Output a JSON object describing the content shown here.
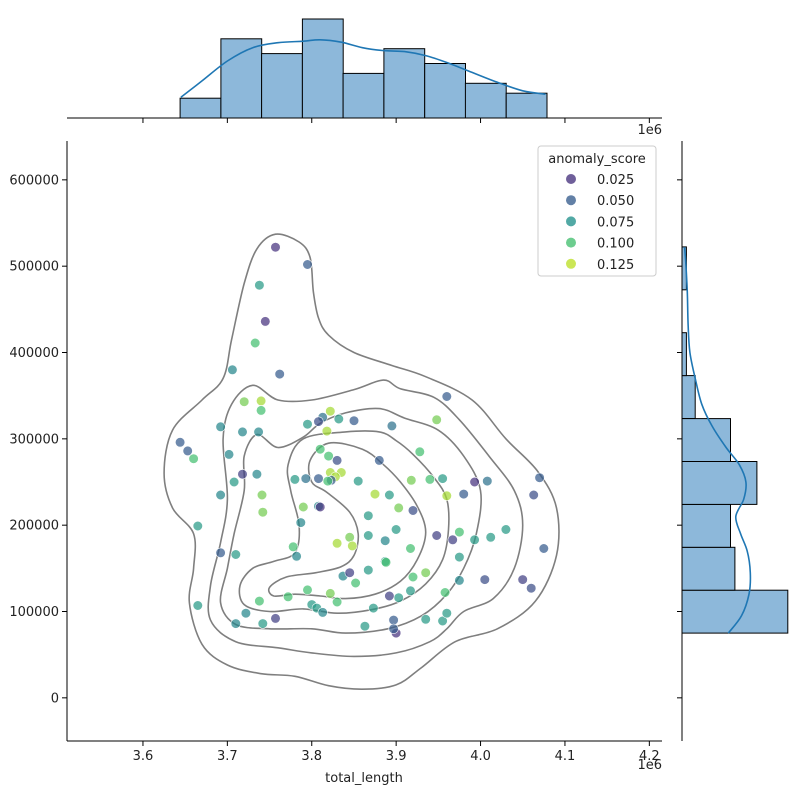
{
  "chart_data": {
    "type": "scatter",
    "title": "",
    "xlabel": "total_length",
    "ylabel": "",
    "x_offset_label": "1e6",
    "top_offset_label": "1e6",
    "xlim": [
      3.51,
      4.215
    ],
    "ylim": [
      -50000,
      645000
    ],
    "x_ticks": [
      3.6,
      3.7,
      3.8,
      3.9,
      4.0,
      4.1,
      4.2
    ],
    "x_tick_labels": [
      "3.6",
      "3.7",
      "3.8",
      "3.9",
      "4.0",
      "4.1",
      "4.2"
    ],
    "y_ticks": [
      0,
      100000,
      200000,
      300000,
      400000,
      500000,
      600000
    ],
    "y_tick_labels": [
      "0",
      "100000",
      "200000",
      "300000",
      "400000",
      "500000",
      "600000"
    ],
    "grid": false,
    "legend": {
      "title": "anomaly_score",
      "position": "top-right",
      "entries": [
        {
          "label": "0.025",
          "color": "#46327e"
        },
        {
          "label": "0.050",
          "color": "#365c8d"
        },
        {
          "label": "0.075",
          "color": "#21918c"
        },
        {
          "label": "0.100",
          "color": "#44bf70"
        },
        {
          "label": "0.125",
          "color": "#bddf26"
        }
      ]
    },
    "points": [
      [
        3.757,
        522000,
        0.02
      ],
      [
        3.795,
        502000,
        0.05
      ],
      [
        3.738,
        478000,
        0.08
      ],
      [
        3.745,
        436000,
        0.02
      ],
      [
        3.733,
        411000,
        0.1
      ],
      [
        3.762,
        375000,
        0.05
      ],
      [
        3.706,
        380000,
        0.07
      ],
      [
        3.72,
        343000,
        0.11
      ],
      [
        3.74,
        344000,
        0.12
      ],
      [
        3.74,
        333000,
        0.1
      ],
      [
        3.718,
        308000,
        0.07
      ],
      [
        3.737,
        308000,
        0.07
      ],
      [
        3.692,
        314000,
        0.07
      ],
      [
        3.644,
        296000,
        0.05
      ],
      [
        3.653,
        286000,
        0.05
      ],
      [
        3.66,
        277000,
        0.1
      ],
      [
        3.702,
        282000,
        0.07
      ],
      [
        3.708,
        250000,
        0.08
      ],
      [
        3.718,
        259000,
        0.03
      ],
      [
        3.735,
        259000,
        0.07
      ],
      [
        3.741,
        235000,
        0.11
      ],
      [
        3.742,
        215000,
        0.11
      ],
      [
        3.692,
        235000,
        0.07
      ],
      [
        3.665,
        199000,
        0.08
      ],
      [
        3.692,
        168000,
        0.05
      ],
      [
        3.71,
        166000,
        0.08
      ],
      [
        3.665,
        107000,
        0.08
      ],
      [
        3.71,
        86000,
        0.07
      ],
      [
        3.722,
        98000,
        0.07
      ],
      [
        3.738,
        112000,
        0.1
      ],
      [
        3.742,
        86000,
        0.08
      ],
      [
        3.757,
        92000,
        0.03
      ],
      [
        3.772,
        117000,
        0.1
      ],
      [
        3.782,
        164000,
        0.07
      ],
      [
        3.787,
        203000,
        0.07
      ],
      [
        3.778,
        175000,
        0.1
      ],
      [
        3.795,
        125000,
        0.1
      ],
      [
        3.8,
        108000,
        0.08
      ],
      [
        3.806,
        104000,
        0.08
      ],
      [
        3.813,
        99000,
        0.07
      ],
      [
        3.822,
        121000,
        0.11
      ],
      [
        3.83,
        111000,
        0.1
      ],
      [
        3.837,
        141000,
        0.07
      ],
      [
        3.845,
        145000,
        0.03
      ],
      [
        3.852,
        133000,
        0.1
      ],
      [
        3.863,
        83000,
        0.08
      ],
      [
        3.873,
        104000,
        0.08
      ],
      [
        3.867,
        148000,
        0.08
      ],
      [
        3.887,
        158000,
        0.08
      ],
      [
        3.897,
        90000,
        0.05
      ],
      [
        3.9,
        75000,
        0.02
      ],
      [
        3.897,
        80000,
        0.05
      ],
      [
        3.903,
        116000,
        0.08
      ],
      [
        3.892,
        118000,
        0.03
      ],
      [
        3.917,
        124000,
        0.08
      ],
      [
        3.92,
        140000,
        0.1
      ],
      [
        3.917,
        173000,
        0.1
      ],
      [
        3.935,
        145000,
        0.11
      ],
      [
        3.935,
        91000,
        0.08
      ],
      [
        3.955,
        89000,
        0.08
      ],
      [
        3.96,
        98000,
        0.08
      ],
      [
        3.958,
        122000,
        0.1
      ],
      [
        3.975,
        136000,
        0.07
      ],
      [
        3.975,
        163000,
        0.08
      ],
      [
        3.975,
        192000,
        0.1
      ],
      [
        3.993,
        183000,
        0.08
      ],
      [
        4.005,
        137000,
        0.04
      ],
      [
        4.012,
        186000,
        0.08
      ],
      [
        4.03,
        195000,
        0.08
      ],
      [
        4.05,
        137000,
        0.03
      ],
      [
        4.063,
        235000,
        0.04
      ],
      [
        4.07,
        255000,
        0.05
      ],
      [
        4.075,
        173000,
        0.05
      ],
      [
        4.06,
        127000,
        0.04
      ],
      [
        3.993,
        250000,
        0.02
      ],
      [
        4.008,
        251000,
        0.06
      ],
      [
        3.98,
        236000,
        0.05
      ],
      [
        3.96,
        234000,
        0.12
      ],
      [
        3.955,
        254000,
        0.08
      ],
      [
        3.96,
        349000,
        0.05
      ],
      [
        3.948,
        322000,
        0.11
      ],
      [
        3.928,
        285000,
        0.1
      ],
      [
        3.94,
        253000,
        0.1
      ],
      [
        3.918,
        252000,
        0.11
      ],
      [
        3.92,
        217000,
        0.04
      ],
      [
        3.948,
        188000,
        0.03
      ],
      [
        3.967,
        183000,
        0.03
      ],
      [
        3.9,
        195000,
        0.08
      ],
      [
        3.903,
        220000,
        0.11
      ],
      [
        3.892,
        235000,
        0.08
      ],
      [
        3.875,
        236000,
        0.12
      ],
      [
        3.88,
        275000,
        0.05
      ],
      [
        3.895,
        315000,
        0.06
      ],
      [
        3.85,
        321000,
        0.05
      ],
      [
        3.832,
        323000,
        0.08
      ],
      [
        3.822,
        332000,
        0.12
      ],
      [
        3.813,
        325000,
        0.06
      ],
      [
        3.808,
        320000,
        0.04
      ],
      [
        3.795,
        317000,
        0.08
      ],
      [
        3.818,
        309000,
        0.12
      ],
      [
        3.81,
        288000,
        0.1
      ],
      [
        3.82,
        280000,
        0.1
      ],
      [
        3.83,
        275000,
        0.04
      ],
      [
        3.822,
        261000,
        0.12
      ],
      [
        3.835,
        261000,
        0.12
      ],
      [
        3.828,
        256000,
        0.12
      ],
      [
        3.823,
        252000,
        0.05
      ],
      [
        3.819,
        251000,
        0.1
      ],
      [
        3.808,
        254000,
        0.05
      ],
      [
        3.793,
        254000,
        0.06
      ],
      [
        3.78,
        253000,
        0.08
      ],
      [
        3.808,
        222000,
        0.07
      ],
      [
        3.81,
        221000,
        0.02
      ],
      [
        3.855,
        251000,
        0.08
      ],
      [
        3.867,
        211000,
        0.08
      ],
      [
        3.867,
        188000,
        0.08
      ],
      [
        3.845,
        186000,
        0.11
      ],
      [
        3.848,
        176000,
        0.12
      ],
      [
        3.83,
        179000,
        0.12
      ],
      [
        3.888,
        157000,
        0.1
      ],
      [
        3.887,
        182000,
        0.07
      ],
      [
        3.79,
        221000,
        0.11
      ]
    ],
    "contours": [
      [
        [
          3.757,
          537000
        ],
        [
          3.785,
          528000
        ],
        [
          3.798,
          510000
        ],
        [
          3.802,
          470000
        ],
        [
          3.808,
          440000
        ],
        [
          3.82,
          420000
        ],
        [
          3.85,
          400000
        ],
        [
          3.895,
          385000
        ],
        [
          3.935,
          372000
        ],
        [
          3.99,
          345000
        ],
        [
          4.03,
          300000
        ],
        [
          4.068,
          262000
        ],
        [
          4.09,
          220000
        ],
        [
          4.09,
          165000
        ],
        [
          4.065,
          112000
        ],
        [
          4.02,
          80000
        ],
        [
          3.97,
          65000
        ],
        [
          3.93,
          35000
        ],
        [
          3.9,
          15000
        ],
        [
          3.86,
          10000
        ],
        [
          3.82,
          14000
        ],
        [
          3.78,
          25000
        ],
        [
          3.74,
          28000
        ],
        [
          3.7,
          38000
        ],
        [
          3.67,
          62000
        ],
        [
          3.655,
          110000
        ],
        [
          3.66,
          150000
        ],
        [
          3.66,
          190000
        ],
        [
          3.635,
          220000
        ],
        [
          3.625,
          260000
        ],
        [
          3.635,
          310000
        ],
        [
          3.67,
          345000
        ],
        [
          3.695,
          370000
        ],
        [
          3.705,
          415000
        ],
        [
          3.72,
          480000
        ],
        [
          3.735,
          520000
        ]
      ],
      [
        [
          3.73,
          362000
        ],
        [
          3.76,
          345000
        ],
        [
          3.8,
          345000
        ],
        [
          3.85,
          357000
        ],
        [
          3.885,
          368000
        ],
        [
          3.905,
          358000
        ],
        [
          3.945,
          348000
        ],
        [
          3.975,
          322000
        ],
        [
          4.01,
          280000
        ],
        [
          4.04,
          240000
        ],
        [
          4.05,
          200000
        ],
        [
          4.04,
          150000
        ],
        [
          4.015,
          115000
        ],
        [
          3.98,
          100000
        ],
        [
          3.96,
          80000
        ],
        [
          3.94,
          65000
        ],
        [
          3.9,
          52000
        ],
        [
          3.85,
          48000
        ],
        [
          3.8,
          52000
        ],
        [
          3.76,
          58000
        ],
        [
          3.71,
          65000
        ],
        [
          3.68,
          90000
        ],
        [
          3.68,
          130000
        ],
        [
          3.692,
          180000
        ],
        [
          3.7,
          230000
        ],
        [
          3.695,
          300000
        ],
        [
          3.705,
          340000
        ]
      ],
      [
        [
          3.735,
          305000
        ],
        [
          3.76,
          290000
        ],
        [
          3.79,
          302000
        ],
        [
          3.81,
          318000
        ],
        [
          3.84,
          330000
        ],
        [
          3.88,
          335000
        ],
        [
          3.91,
          324000
        ],
        [
          3.95,
          310000
        ],
        [
          3.98,
          280000
        ],
        [
          4.0,
          240000
        ],
        [
          3.995,
          190000
        ],
        [
          3.98,
          150000
        ],
        [
          3.96,
          120000
        ],
        [
          3.93,
          95000
        ],
        [
          3.89,
          80000
        ],
        [
          3.84,
          75000
        ],
        [
          3.8,
          80000
        ],
        [
          3.75,
          80000
        ],
        [
          3.71,
          85000
        ],
        [
          3.692,
          110000
        ],
        [
          3.7,
          150000
        ],
        [
          3.708,
          190000
        ],
        [
          3.72,
          240000
        ],
        [
          3.72,
          280000
        ]
      ],
      [
        [
          3.79,
          300000
        ],
        [
          3.84,
          308000
        ],
        [
          3.88,
          308000
        ],
        [
          3.9,
          298000
        ],
        [
          3.92,
          282000
        ],
        [
          3.945,
          255000
        ],
        [
          3.96,
          230000
        ],
        [
          3.962,
          195000
        ],
        [
          3.955,
          160000
        ],
        [
          3.935,
          132000
        ],
        [
          3.905,
          112000
        ],
        [
          3.87,
          102000
        ],
        [
          3.83,
          98000
        ],
        [
          3.79,
          103000
        ],
        [
          3.75,
          100000
        ],
        [
          3.72,
          108000
        ],
        [
          3.715,
          130000
        ],
        [
          3.73,
          150000
        ],
        [
          3.755,
          158000
        ],
        [
          3.78,
          168000
        ],
        [
          3.785,
          200000
        ],
        [
          3.775,
          240000
        ],
        [
          3.772,
          270000
        ]
      ],
      [
        [
          3.82,
          295000
        ],
        [
          3.86,
          288000
        ],
        [
          3.885,
          270000
        ],
        [
          3.905,
          250000
        ],
        [
          3.925,
          222000
        ],
        [
          3.935,
          192000
        ],
        [
          3.925,
          160000
        ],
        [
          3.905,
          135000
        ],
        [
          3.875,
          120000
        ],
        [
          3.84,
          115000
        ],
        [
          3.81,
          118000
        ],
        [
          3.78,
          120000
        ],
        [
          3.755,
          118000
        ],
        [
          3.75,
          128000
        ],
        [
          3.77,
          140000
        ],
        [
          3.805,
          145000
        ],
        [
          3.835,
          152000
        ],
        [
          3.85,
          165000
        ],
        [
          3.855,
          190000
        ],
        [
          3.845,
          215000
        ],
        [
          3.818,
          238000
        ],
        [
          3.8,
          250000
        ],
        [
          3.798,
          275000
        ]
      ]
    ],
    "top_histogram": {
      "bin_edges": [
        3.644,
        3.6923,
        3.7406,
        3.7889,
        3.8372,
        3.8855,
        3.9338,
        3.9821,
        4.0304,
        4.0787
      ],
      "counts": [
        4,
        16,
        13,
        20,
        9,
        14,
        11,
        7,
        5
      ],
      "kde": [
        [
          3.645,
          4.2
        ],
        [
          3.67,
          7.5
        ],
        [
          3.7,
          11.5
        ],
        [
          3.73,
          14.2
        ],
        [
          3.76,
          15.2
        ],
        [
          3.79,
          15.5
        ],
        [
          3.81,
          15.8
        ],
        [
          3.835,
          15.3
        ],
        [
          3.86,
          14.2
        ],
        [
          3.885,
          13.6
        ],
        [
          3.91,
          13.4
        ],
        [
          3.935,
          12.6
        ],
        [
          3.96,
          11.2
        ],
        [
          3.99,
          9.2
        ],
        [
          4.02,
          7.2
        ],
        [
          4.05,
          5.5
        ],
        [
          4.077,
          4.8
        ]
      ]
    },
    "right_histogram": {
      "bin_edges": [
        75000,
        124700,
        174400,
        224100,
        273800,
        323500,
        373200,
        422900,
        472600,
        522300
      ],
      "counts": [
        24,
        12,
        11,
        17,
        11,
        3,
        1,
        0,
        1
      ],
      "kde": [
        [
          75000,
          10.5
        ],
        [
          95000,
          13.5
        ],
        [
          120000,
          15.2
        ],
        [
          145000,
          15.5
        ],
        [
          170000,
          14.8
        ],
        [
          190000,
          13.3
        ],
        [
          210000,
          12.2
        ],
        [
          230000,
          14
        ],
        [
          250000,
          14.5
        ],
        [
          270000,
          13
        ],
        [
          290000,
          10
        ],
        [
          315000,
          6.8
        ],
        [
          340000,
          4.5
        ],
        [
          370000,
          3
        ],
        [
          400000,
          1.8
        ],
        [
          430000,
          1.4
        ],
        [
          470000,
          1.2
        ],
        [
          500000,
          0.9
        ],
        [
          522000,
          0.6
        ]
      ]
    }
  }
}
